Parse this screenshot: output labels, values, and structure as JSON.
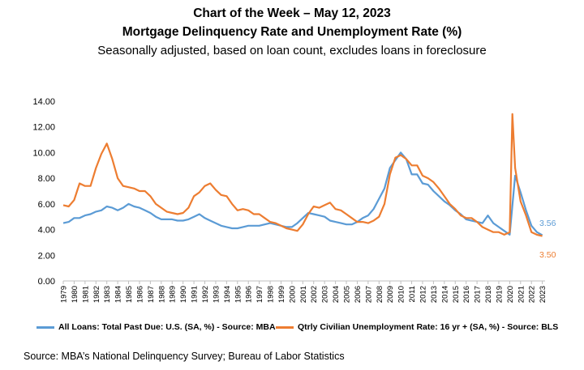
{
  "title_line1": "Chart of the Week – May 12, 2023",
  "title_line2": "Mortgage Delinquency Rate and Unemployment Rate (%)",
  "subtitle": "Seasonally adjusted, based on loan count, excludes loans in foreclosure",
  "source": "Source: MBA’s National Delinquency Survey; Bureau of Labor Statistics",
  "colors": {
    "delinquency": "#5B9BD5",
    "unemployment": "#ED7D31",
    "axis": "#BFBFBF"
  },
  "chart_data": {
    "type": "line",
    "ylim": [
      0,
      14
    ],
    "yticks": [
      "0.00",
      "2.00",
      "4.00",
      "6.00",
      "8.00",
      "10.00",
      "12.00",
      "14.00"
    ],
    "xlim": [
      1979,
      2023.25
    ],
    "xticks": [
      "1979",
      "1980",
      "1981",
      "1982",
      "1983",
      "1984",
      "1985",
      "1986",
      "1987",
      "1988",
      "1989",
      "1990",
      "1991",
      "1992",
      "1993",
      "1994",
      "1995",
      "1996",
      "1997",
      "1998",
      "1999",
      "2000",
      "2001",
      "2002",
      "2003",
      "2004",
      "2005",
      "2006",
      "2007",
      "2008",
      "2009",
      "2010",
      "2011",
      "2012",
      "2013",
      "2014",
      "2015",
      "2016",
      "2017",
      "2018",
      "2019",
      "2020",
      "2021",
      "2022",
      "2023"
    ],
    "grid": false,
    "legend": "bottom",
    "series": [
      {
        "name": "All Loans: Total Past Due: U.S. (SA, %) - Source: MBA",
        "end_label": "3.56",
        "points": [
          [
            1979,
            4.5
          ],
          [
            1979.5,
            4.6
          ],
          [
            1980,
            4.9
          ],
          [
            1980.5,
            4.9
          ],
          [
            1981,
            5.1
          ],
          [
            1981.5,
            5.2
          ],
          [
            1982,
            5.4
          ],
          [
            1982.5,
            5.5
          ],
          [
            1983,
            5.8
          ],
          [
            1983.5,
            5.7
          ],
          [
            1984,
            5.5
          ],
          [
            1984.5,
            5.7
          ],
          [
            1985,
            6.0
          ],
          [
            1985.5,
            5.8
          ],
          [
            1986,
            5.7
          ],
          [
            1986.5,
            5.5
          ],
          [
            1987,
            5.3
          ],
          [
            1987.5,
            5.0
          ],
          [
            1988,
            4.8
          ],
          [
            1988.5,
            4.8
          ],
          [
            1989,
            4.8
          ],
          [
            1989.5,
            4.7
          ],
          [
            1990,
            4.7
          ],
          [
            1990.5,
            4.8
          ],
          [
            1991,
            5.0
          ],
          [
            1991.5,
            5.2
          ],
          [
            1992,
            4.9
          ],
          [
            1992.5,
            4.7
          ],
          [
            1993,
            4.5
          ],
          [
            1993.5,
            4.3
          ],
          [
            1994,
            4.2
          ],
          [
            1994.5,
            4.1
          ],
          [
            1995,
            4.1
          ],
          [
            1995.5,
            4.2
          ],
          [
            1996,
            4.3
          ],
          [
            1996.5,
            4.3
          ],
          [
            1997,
            4.3
          ],
          [
            1997.5,
            4.4
          ],
          [
            1998,
            4.5
          ],
          [
            1998.5,
            4.4
          ],
          [
            1999,
            4.3
          ],
          [
            1999.5,
            4.2
          ],
          [
            2000,
            4.2
          ],
          [
            2000.5,
            4.5
          ],
          [
            2001,
            4.9
          ],
          [
            2001.5,
            5.3
          ],
          [
            2002,
            5.2
          ],
          [
            2002.5,
            5.1
          ],
          [
            2003,
            5.0
          ],
          [
            2003.5,
            4.7
          ],
          [
            2004,
            4.6
          ],
          [
            2004.5,
            4.5
          ],
          [
            2005,
            4.4
          ],
          [
            2005.5,
            4.4
          ],
          [
            2006,
            4.6
          ],
          [
            2006.5,
            4.9
          ],
          [
            2007,
            5.1
          ],
          [
            2007.5,
            5.6
          ],
          [
            2008,
            6.4
          ],
          [
            2008.5,
            7.2
          ],
          [
            2009,
            8.8
          ],
          [
            2009.5,
            9.4
          ],
          [
            2010,
            10.0
          ],
          [
            2010.5,
            9.5
          ],
          [
            2011,
            8.3
          ],
          [
            2011.5,
            8.3
          ],
          [
            2012,
            7.6
          ],
          [
            2012.5,
            7.5
          ],
          [
            2013,
            7.0
          ],
          [
            2013.5,
            6.6
          ],
          [
            2014,
            6.2
          ],
          [
            2014.5,
            5.9
          ],
          [
            2015,
            5.5
          ],
          [
            2015.5,
            5.2
          ],
          [
            2016,
            4.8
          ],
          [
            2016.5,
            4.7
          ],
          [
            2017,
            4.6
          ],
          [
            2017.5,
            4.5
          ],
          [
            2018,
            5.1
          ],
          [
            2018.5,
            4.5
          ],
          [
            2019,
            4.2
          ],
          [
            2019.5,
            3.9
          ],
          [
            2020,
            3.6
          ],
          [
            2020.5,
            8.2
          ],
          [
            2021,
            6.9
          ],
          [
            2021.5,
            5.5
          ],
          [
            2022,
            4.3
          ],
          [
            2022.5,
            3.8
          ],
          [
            2023,
            3.56
          ]
        ]
      },
      {
        "name": "Qtrly Civilian Unemployment Rate: 16 yr + (SA, %) - Source: BLS",
        "end_label": "3.50",
        "points": [
          [
            1979,
            5.9
          ],
          [
            1979.5,
            5.8
          ],
          [
            1980,
            6.3
          ],
          [
            1980.5,
            7.6
          ],
          [
            1981,
            7.4
          ],
          [
            1981.5,
            7.4
          ],
          [
            1982,
            8.8
          ],
          [
            1982.5,
            9.9
          ],
          [
            1983,
            10.7
          ],
          [
            1983.5,
            9.5
          ],
          [
            1984,
            8.0
          ],
          [
            1984.5,
            7.4
          ],
          [
            1985,
            7.3
          ],
          [
            1985.5,
            7.2
          ],
          [
            1986,
            7.0
          ],
          [
            1986.5,
            7.0
          ],
          [
            1987,
            6.6
          ],
          [
            1987.5,
            6.0
          ],
          [
            1988,
            5.7
          ],
          [
            1988.5,
            5.4
          ],
          [
            1989,
            5.3
          ],
          [
            1989.5,
            5.2
          ],
          [
            1990,
            5.3
          ],
          [
            1990.5,
            5.7
          ],
          [
            1991,
            6.6
          ],
          [
            1991.5,
            6.9
          ],
          [
            1992,
            7.4
          ],
          [
            1992.5,
            7.6
          ],
          [
            1993,
            7.1
          ],
          [
            1993.5,
            6.7
          ],
          [
            1994,
            6.6
          ],
          [
            1994.5,
            6.0
          ],
          [
            1995,
            5.5
          ],
          [
            1995.5,
            5.6
          ],
          [
            1996,
            5.5
          ],
          [
            1996.5,
            5.2
          ],
          [
            1997,
            5.2
          ],
          [
            1997.5,
            4.9
          ],
          [
            1998,
            4.6
          ],
          [
            1998.5,
            4.5
          ],
          [
            1999,
            4.3
          ],
          [
            1999.5,
            4.1
          ],
          [
            2000,
            4.0
          ],
          [
            2000.5,
            3.9
          ],
          [
            2001,
            4.4
          ],
          [
            2001.5,
            5.2
          ],
          [
            2002,
            5.8
          ],
          [
            2002.5,
            5.7
          ],
          [
            2003,
            5.9
          ],
          [
            2003.5,
            6.1
          ],
          [
            2004,
            5.6
          ],
          [
            2004.5,
            5.5
          ],
          [
            2005,
            5.2
          ],
          [
            2005.5,
            4.9
          ],
          [
            2006,
            4.6
          ],
          [
            2006.5,
            4.6
          ],
          [
            2007,
            4.5
          ],
          [
            2007.5,
            4.7
          ],
          [
            2008,
            5.0
          ],
          [
            2008.5,
            6.0
          ],
          [
            2009,
            8.3
          ],
          [
            2009.5,
            9.6
          ],
          [
            2010,
            9.8
          ],
          [
            2010.5,
            9.5
          ],
          [
            2011,
            9.0
          ],
          [
            2011.5,
            9.0
          ],
          [
            2012,
            8.2
          ],
          [
            2012.5,
            8.0
          ],
          [
            2013,
            7.7
          ],
          [
            2013.5,
            7.2
          ],
          [
            2014,
            6.6
          ],
          [
            2014.5,
            6.0
          ],
          [
            2015,
            5.6
          ],
          [
            2015.5,
            5.1
          ],
          [
            2016,
            4.9
          ],
          [
            2016.5,
            4.9
          ],
          [
            2017,
            4.6
          ],
          [
            2017.5,
            4.2
          ],
          [
            2018,
            4.0
          ],
          [
            2018.5,
            3.8
          ],
          [
            2019,
            3.8
          ],
          [
            2019.5,
            3.6
          ],
          [
            2020,
            3.8
          ],
          [
            2020.25,
            13.0
          ],
          [
            2020.5,
            8.8
          ],
          [
            2021,
            6.2
          ],
          [
            2021.5,
            5.1
          ],
          [
            2022,
            3.8
          ],
          [
            2022.5,
            3.6
          ],
          [
            2023,
            3.5
          ]
        ]
      }
    ]
  }
}
